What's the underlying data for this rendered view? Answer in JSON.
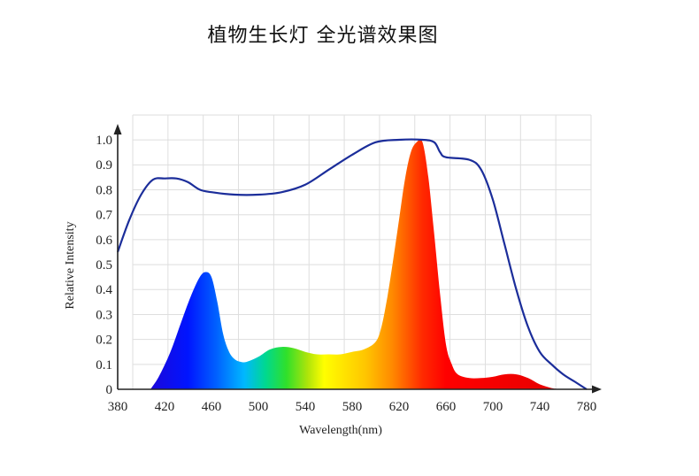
{
  "page_title": "植物生长灯 全光谱效果图",
  "chart_data": {
    "type": "area",
    "title": "植物生长灯 全光谱效果图",
    "xlabel": "Wavelength(nm)",
    "ylabel": "Relative Intensity",
    "xlim": [
      380,
      780
    ],
    "ylim": [
      0,
      1.0
    ],
    "x_ticks": [
      "380",
      "420",
      "460",
      "500",
      "540",
      "580",
      "620",
      "660",
      "700",
      "740",
      "780"
    ],
    "y_ticks": [
      "0",
      "0.1",
      "0.2",
      "0.3",
      "0.4",
      "0.5",
      "0.6",
      "0.7",
      "0.8",
      "0.9",
      "1.0"
    ],
    "grid": true,
    "spectrum_fill": "rainbow by wavelength",
    "series": [
      {
        "kind": "envelope-line",
        "color": "#1b2d9a",
        "points": [
          [
            380,
            0.55
          ],
          [
            390,
            0.68
          ],
          [
            400,
            0.78
          ],
          [
            410,
            0.84
          ],
          [
            420,
            0.845
          ],
          [
            430,
            0.845
          ],
          [
            440,
            0.83
          ],
          [
            450,
            0.8
          ],
          [
            460,
            0.79
          ],
          [
            480,
            0.78
          ],
          [
            500,
            0.78
          ],
          [
            520,
            0.79
          ],
          [
            540,
            0.82
          ],
          [
            560,
            0.88
          ],
          [
            580,
            0.94
          ],
          [
            600,
            0.99
          ],
          [
            620,
            1.0
          ],
          [
            640,
            1.0
          ],
          [
            650,
            0.99
          ],
          [
            655,
            0.95
          ],
          [
            660,
            0.93
          ],
          [
            680,
            0.92
          ],
          [
            690,
            0.88
          ],
          [
            700,
            0.76
          ],
          [
            710,
            0.58
          ],
          [
            720,
            0.4
          ],
          [
            730,
            0.25
          ],
          [
            740,
            0.15
          ],
          [
            750,
            0.1
          ],
          [
            760,
            0.06
          ],
          [
            770,
            0.03
          ],
          [
            780,
            0.0
          ]
        ]
      },
      {
        "kind": "spectrum-area",
        "points": [
          [
            408,
            0.0
          ],
          [
            415,
            0.05
          ],
          [
            425,
            0.15
          ],
          [
            435,
            0.28
          ],
          [
            443,
            0.38
          ],
          [
            450,
            0.45
          ],
          [
            455,
            0.47
          ],
          [
            460,
            0.45
          ],
          [
            465,
            0.35
          ],
          [
            470,
            0.22
          ],
          [
            475,
            0.15
          ],
          [
            480,
            0.12
          ],
          [
            485,
            0.11
          ],
          [
            490,
            0.11
          ],
          [
            500,
            0.13
          ],
          [
            510,
            0.16
          ],
          [
            520,
            0.17
          ],
          [
            530,
            0.165
          ],
          [
            540,
            0.15
          ],
          [
            550,
            0.14
          ],
          [
            560,
            0.14
          ],
          [
            570,
            0.14
          ],
          [
            580,
            0.15
          ],
          [
            590,
            0.16
          ],
          [
            600,
            0.19
          ],
          [
            605,
            0.25
          ],
          [
            610,
            0.37
          ],
          [
            615,
            0.52
          ],
          [
            620,
            0.68
          ],
          [
            625,
            0.84
          ],
          [
            630,
            0.95
          ],
          [
            635,
            0.99
          ],
          [
            640,
            0.99
          ],
          [
            645,
            0.85
          ],
          [
            650,
            0.62
          ],
          [
            655,
            0.38
          ],
          [
            660,
            0.18
          ],
          [
            665,
            0.1
          ],
          [
            670,
            0.06
          ],
          [
            680,
            0.045
          ],
          [
            690,
            0.045
          ],
          [
            700,
            0.05
          ],
          [
            710,
            0.06
          ],
          [
            720,
            0.06
          ],
          [
            730,
            0.045
          ],
          [
            740,
            0.02
          ],
          [
            750,
            0.005
          ],
          [
            758,
            0.0
          ]
        ]
      }
    ]
  }
}
